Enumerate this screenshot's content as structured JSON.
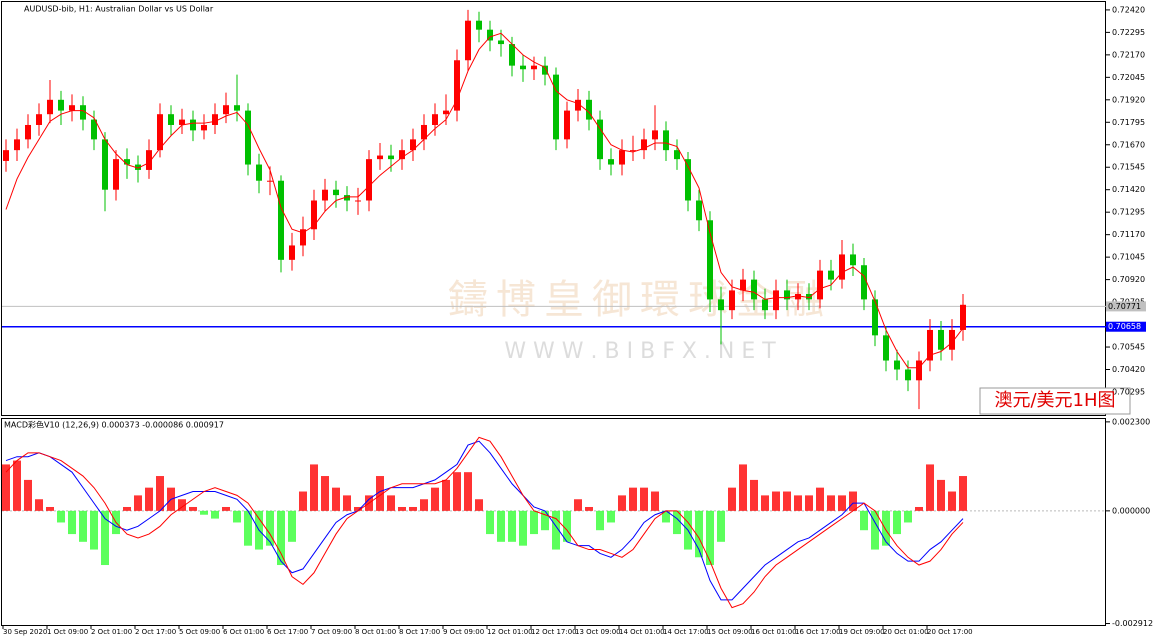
{
  "chart_data": [
    {
      "type": "candlestick",
      "title": "AUDUSD-bib, H1: Australian Dollar vs US Dollar",
      "annotation": "澳元/美元1H图",
      "watermark": [
        "鑄博皇御環球金融",
        "W W W . B I B F X . N E T"
      ],
      "up_color": "#ff0000",
      "down_color": "#00c000",
      "open": [
        0.7158,
        0.7164,
        0.717,
        0.7178,
        0.7184,
        0.7192,
        0.7186,
        0.7189,
        0.7181,
        0.717,
        0.7142,
        0.7159,
        0.7156,
        0.7153,
        0.7164,
        0.7184,
        0.7178,
        0.7181,
        0.7175,
        0.7178,
        0.7184,
        0.7189,
        0.7186,
        0.7156,
        0.7147,
        0.7147,
        0.7103,
        0.7111,
        0.712,
        0.7136,
        0.7142,
        0.7139,
        0.7136,
        0.7136,
        0.7159,
        0.7161,
        0.7159,
        0.7164,
        0.717,
        0.7178,
        0.7184,
        0.7186,
        0.7214,
        0.7236,
        0.7231,
        0.7225,
        0.7223,
        0.7211,
        0.7209,
        0.7211,
        0.7206,
        0.717,
        0.7186,
        0.7192,
        0.7181,
        0.7159,
        0.7156,
        0.7164,
        0.7164,
        0.717,
        0.7175,
        0.7164,
        0.7159,
        0.7136,
        0.7125,
        0.7081,
        0.7075,
        0.7086,
        0.7092,
        0.7081,
        0.7075,
        0.7086,
        0.7081,
        0.7084,
        0.7081,
        0.7097,
        0.7092,
        0.7106,
        0.71,
        0.7081,
        0.7061,
        0.7047,
        0.7042,
        0.7036,
        0.7047,
        0.7064,
        0.7053,
        0.7064
      ],
      "high": [
        0.717,
        0.7176,
        0.7184,
        0.719,
        0.7203,
        0.7197,
        0.7195,
        0.7194,
        0.7186,
        0.7174,
        0.7164,
        0.7165,
        0.7161,
        0.717,
        0.719,
        0.7189,
        0.7187,
        0.7186,
        0.7184,
        0.719,
        0.7196,
        0.7206,
        0.719,
        0.7162,
        0.7155,
        0.715,
        0.7118,
        0.7127,
        0.7142,
        0.7148,
        0.7147,
        0.7144,
        0.7143,
        0.7164,
        0.7168,
        0.7167,
        0.717,
        0.7176,
        0.7184,
        0.719,
        0.7195,
        0.722,
        0.7242,
        0.7241,
        0.7236,
        0.7231,
        0.7227,
        0.7217,
        0.7216,
        0.7216,
        0.721,
        0.7191,
        0.7198,
        0.7197,
        0.7186,
        0.7165,
        0.717,
        0.7172,
        0.7176,
        0.7189,
        0.718,
        0.717,
        0.7163,
        0.7142,
        0.713,
        0.7088,
        0.7092,
        0.7098,
        0.7097,
        0.7087,
        0.7092,
        0.7092,
        0.709,
        0.709,
        0.7103,
        0.7103,
        0.7114,
        0.7112,
        0.7104,
        0.7086,
        0.7066,
        0.7053,
        0.7047,
        0.7052,
        0.707,
        0.7069,
        0.707,
        0.7084
      ],
      "low": [
        0.7152,
        0.7158,
        0.7165,
        0.7172,
        0.7179,
        0.7178,
        0.718,
        0.7175,
        0.7164,
        0.713,
        0.7136,
        0.7148,
        0.7146,
        0.7148,
        0.716,
        0.7172,
        0.7173,
        0.7169,
        0.717,
        0.7173,
        0.7179,
        0.718,
        0.715,
        0.714,
        0.7139,
        0.7096,
        0.7097,
        0.7105,
        0.7114,
        0.713,
        0.7132,
        0.713,
        0.7128,
        0.713,
        0.7153,
        0.7152,
        0.7153,
        0.7158,
        0.7164,
        0.7172,
        0.7178,
        0.718,
        0.7208,
        0.7224,
        0.7219,
        0.7216,
        0.7205,
        0.7202,
        0.7203,
        0.72,
        0.7164,
        0.7165,
        0.718,
        0.7175,
        0.7153,
        0.715,
        0.715,
        0.7158,
        0.7159,
        0.7164,
        0.7158,
        0.7153,
        0.713,
        0.7119,
        0.7074,
        0.7056,
        0.707,
        0.708,
        0.7075,
        0.707,
        0.707,
        0.7075,
        0.7075,
        0.7075,
        0.7076,
        0.7086,
        0.7087,
        0.7094,
        0.7075,
        0.7055,
        0.7041,
        0.7036,
        0.703,
        0.702,
        0.7041,
        0.7047,
        0.7047,
        0.7058
      ],
      "close": [
        0.7164,
        0.717,
        0.7178,
        0.7184,
        0.7192,
        0.7186,
        0.7189,
        0.7181,
        0.717,
        0.7142,
        0.7159,
        0.7156,
        0.7153,
        0.7164,
        0.7184,
        0.7178,
        0.7181,
        0.7175,
        0.7178,
        0.7184,
        0.7189,
        0.7186,
        0.7156,
        0.7147,
        0.7147,
        0.7103,
        0.7111,
        0.712,
        0.7136,
        0.7142,
        0.7139,
        0.7136,
        0.7136,
        0.7159,
        0.7161,
        0.7159,
        0.7164,
        0.717,
        0.7178,
        0.7184,
        0.7186,
        0.7214,
        0.7236,
        0.7231,
        0.7225,
        0.7223,
        0.7211,
        0.7209,
        0.7211,
        0.7206,
        0.717,
        0.7186,
        0.7192,
        0.7181,
        0.7159,
        0.7156,
        0.7164,
        0.7164,
        0.717,
        0.7175,
        0.7164,
        0.7159,
        0.7136,
        0.7125,
        0.7081,
        0.7075,
        0.7086,
        0.7092,
        0.7081,
        0.7075,
        0.7086,
        0.7081,
        0.7084,
        0.7081,
        0.7097,
        0.7092,
        0.7106,
        0.71,
        0.7081,
        0.7061,
        0.7047,
        0.7042,
        0.7036,
        0.7047,
        0.7064,
        0.7053,
        0.7064,
        0.7078
      ],
      "series": [
        {
          "color": "#ff0000",
          "values": [
            0.7131,
            0.7148,
            0.716,
            0.717,
            0.718,
            0.7184,
            0.7186,
            0.7186,
            0.7182,
            0.717,
            0.7162,
            0.7156,
            0.7154,
            0.7157,
            0.7165,
            0.7172,
            0.7178,
            0.7179,
            0.7179,
            0.718,
            0.7183,
            0.7185,
            0.7178,
            0.7165,
            0.7153,
            0.7132,
            0.712,
            0.7118,
            0.7122,
            0.713,
            0.7136,
            0.7138,
            0.7138,
            0.7144,
            0.715,
            0.7155,
            0.716,
            0.7164,
            0.717,
            0.7176,
            0.7181,
            0.7192,
            0.7208,
            0.722,
            0.7227,
            0.7229,
            0.7223,
            0.7217,
            0.7213,
            0.721,
            0.7197,
            0.7192,
            0.719,
            0.7185,
            0.7176,
            0.7167,
            0.7164,
            0.7163,
            0.7165,
            0.7168,
            0.7168,
            0.7166,
            0.7155,
            0.7143,
            0.7118,
            0.7096,
            0.7088,
            0.7086,
            0.7085,
            0.7081,
            0.7082,
            0.7082,
            0.7083,
            0.7082,
            0.7087,
            0.7089,
            0.7096,
            0.7099,
            0.7094,
            0.708,
            0.7064,
            0.7052,
            0.7043,
            0.7043,
            0.705,
            0.7052,
            0.7057,
            0.7065
          ]
        }
      ],
      "hlines": [
        {
          "value": 0.70771,
          "label": "0.70771",
          "color": "#c0c0c0"
        },
        {
          "value": 0.70658,
          "label": "0.70658",
          "color": "#0000ff"
        }
      ],
      "ylim": [
        0.70167,
        0.72464
      ],
      "yticks": [
        {
          "value": 0.7242,
          "label": "0.72420"
        },
        {
          "value": 0.72295,
          "label": "0.72295"
        },
        {
          "value": 0.7217,
          "label": "0.72170"
        },
        {
          "value": 0.72045,
          "label": "0.72045"
        },
        {
          "value": 0.7192,
          "label": "0.71920"
        },
        {
          "value": 0.71795,
          "label": "0.71795"
        },
        {
          "value": 0.7167,
          "label": "0.71670"
        },
        {
          "value": 0.71545,
          "label": "0.71545"
        },
        {
          "value": 0.7142,
          "label": "0.71420"
        },
        {
          "value": 0.71295,
          "label": "0.71295"
        },
        {
          "value": 0.7117,
          "label": "0.71170"
        },
        {
          "value": 0.71045,
          "label": "0.71045"
        },
        {
          "value": 0.7092,
          "label": "0.70920"
        },
        {
          "value": 0.70795,
          "label": "0.70795"
        },
        {
          "value": 0.70545,
          "label": "0.70545"
        },
        {
          "value": 0.7042,
          "label": "0.70420"
        },
        {
          "value": 0.70295,
          "label": "0.70295"
        }
      ]
    },
    {
      "type": "macd",
      "title": "MACD彩色V10 (12,26,9) 0.000373 -0.000086 0.000917",
      "categories": [
        "30 Sep 2020",
        null,
        null,
        null,
        "1 Oct 09:00",
        null,
        null,
        null,
        "2 Oct 01:00",
        null,
        null,
        null,
        "2 Oct 17:00",
        null,
        null,
        null,
        "5 Oct 09:00",
        null,
        null,
        null,
        "6 Oct 01:00",
        null,
        null,
        null,
        "6 Oct 17:00",
        null,
        null,
        null,
        "7 Oct 09:00",
        null,
        null,
        null,
        "8 Oct 01:00",
        null,
        null,
        null,
        "8 Oct 17:00",
        null,
        null,
        null,
        "9 Oct 09:00",
        null,
        null,
        null,
        "12 Oct 01:00",
        null,
        null,
        null,
        "12 Oct 17:00",
        null,
        null,
        null,
        "13 Oct 09:00",
        null,
        null,
        null,
        "14 Oct 01:00",
        null,
        null,
        null,
        "14 Oct 17:00",
        null,
        null,
        null,
        "15 Oct 09:00",
        null,
        null,
        null,
        "16 Oct 01:00",
        null,
        null,
        null,
        "16 Oct 17:00",
        null,
        null,
        null,
        "19 Oct 09:00",
        null,
        null,
        null,
        "20 Oct 01:00",
        null,
        null,
        null,
        "20 Oct 17:00",
        null,
        null,
        null
      ],
      "histogram": {
        "up_color": "#ff0000",
        "down_color": "#33ff33",
        "values": [
          0.0012,
          0.0013,
          0.0008,
          0.0003,
          0.0001,
          -0.0003,
          -0.0006,
          -0.0008,
          -0.001,
          -0.0014,
          -0.0006,
          0.0001,
          0.0004,
          0.0006,
          0.0009,
          0.0006,
          0.0003,
          0.0001,
          -0.0001,
          -0.0002,
          0.0001,
          -0.0003,
          -0.0009,
          -0.001,
          -0.0009,
          -0.0014,
          -0.0008,
          0.0005,
          0.0012,
          0.0009,
          0.0006,
          0.0004,
          0.0001,
          0.0004,
          0.0009,
          0.0004,
          0.0001,
          0.0001,
          0.0003,
          0.0006,
          0.0008,
          0.001,
          0.001,
          0.0003,
          -0.0006,
          -0.0008,
          -0.0008,
          -0.0009,
          -0.0006,
          -0.0005,
          -0.001,
          -0.0008,
          0.0003,
          0.0001,
          -0.0005,
          -0.0003,
          0.0004,
          0.0006,
          0.0006,
          0.0005,
          -0.0003,
          -0.0006,
          -0.001,
          -0.0012,
          -0.0014,
          -0.0008,
          0.0006,
          0.0012,
          0.0008,
          0.0004,
          0.0005,
          0.0005,
          0.0004,
          0.0004,
          0.0006,
          0.0004,
          0.0004,
          0.0005,
          -0.0005,
          -0.001,
          -0.0009,
          -0.0006,
          -0.0003,
          0.0001,
          0.0012,
          0.0008,
          0.0005,
          0.0009
        ]
      },
      "series": [
        {
          "color": "#0000ff",
          "values": [
            0.0013,
            0.0014,
            0.0014,
            0.0015,
            0.0014,
            0.0012,
            0.001,
            0.0006,
            0.0002,
            -0.0002,
            -0.0004,
            -0.0005,
            -0.0004,
            -0.0002,
            0.0,
            0.0003,
            0.0004,
            0.0005,
            0.0005,
            0.0005,
            0.0004,
            0.0003,
            0.0,
            -0.0005,
            -0.0008,
            -0.0013,
            -0.0016,
            -0.0015,
            -0.0011,
            -0.0007,
            -0.0003,
            -0.0001,
            0.0,
            0.0003,
            0.0005,
            0.0006,
            0.0006,
            0.0006,
            0.0007,
            0.0008,
            0.001,
            0.0012,
            0.0017,
            0.0018,
            0.0015,
            0.0011,
            0.0007,
            0.0004,
            0.0001,
            0.0,
            -0.0004,
            -0.0008,
            -0.0009,
            -0.0009,
            -0.0011,
            -0.0012,
            -0.001,
            -0.0007,
            -0.0003,
            -0.0001,
            0.0,
            -0.0002,
            -0.0005,
            -0.001,
            -0.0018,
            -0.0023,
            -0.0023,
            -0.002,
            -0.0017,
            -0.0014,
            -0.0012,
            -0.001,
            -0.0008,
            -0.0007,
            -0.0005,
            -0.0003,
            -0.0001,
            0.0002,
            0.0002,
            -0.0003,
            -0.0008,
            -0.0011,
            -0.0013,
            -0.0013,
            -0.001,
            -0.0008,
            -0.0005,
            -0.0002
          ]
        },
        {
          "color": "#ff0000",
          "values": [
            0.001,
            0.0013,
            0.0015,
            0.0015,
            0.0014,
            0.0013,
            0.0011,
            0.0009,
            0.0006,
            0.0002,
            -0.0003,
            -0.0006,
            -0.0007,
            -0.0006,
            -0.0004,
            -0.0001,
            0.0001,
            0.0003,
            0.0005,
            0.0006,
            0.0005,
            0.0004,
            0.0002,
            -0.0002,
            -0.0006,
            -0.0011,
            -0.0017,
            -0.0019,
            -0.0016,
            -0.0011,
            -0.0006,
            -0.0002,
            0.0,
            0.0002,
            0.0004,
            0.0006,
            0.0007,
            0.0007,
            0.0007,
            0.0007,
            0.0008,
            0.0011,
            0.0015,
            0.0019,
            0.0018,
            0.0014,
            0.0009,
            0.0004,
            0.0,
            -0.0001,
            -0.0002,
            -0.0005,
            -0.0009,
            -0.001,
            -0.001,
            -0.0011,
            -0.0012,
            -0.001,
            -0.0006,
            -0.0002,
            0.0,
            0.0,
            -0.0003,
            -0.0007,
            -0.0013,
            -0.002,
            -0.0025,
            -0.0024,
            -0.0021,
            -0.0017,
            -0.0014,
            -0.0012,
            -0.001,
            -0.0008,
            -0.0006,
            -0.0004,
            -0.0002,
            0.0,
            0.0002,
            0.0,
            -0.0005,
            -0.0009,
            -0.0012,
            -0.0014,
            -0.0013,
            -0.001,
            -0.0006,
            -0.0003
          ]
        }
      ],
      "ylim": [
        -0.00295,
        0.0024
      ],
      "yticks": [
        {
          "value": 0.0023,
          "label": "0.002300"
        },
        {
          "value": 0,
          "label": "0.000000"
        },
        {
          "value": -0.002912,
          "label": "-0.002912"
        }
      ]
    }
  ]
}
